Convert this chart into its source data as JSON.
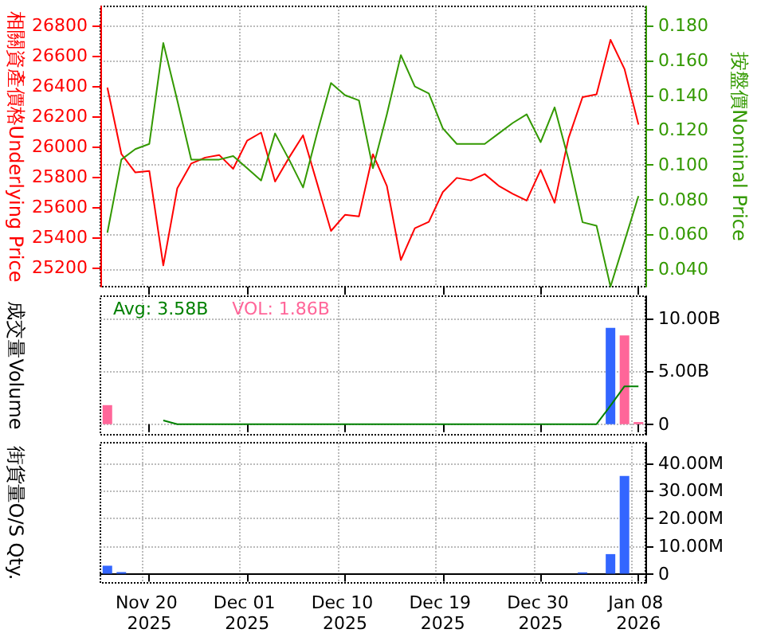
{
  "chart_data": [
    {
      "type": "line",
      "categories": [
        null,
        null,
        null,
        "Nov 20 2025",
        null,
        null,
        null,
        null,
        null,
        null,
        "Dec 01 2025",
        null,
        null,
        null,
        null,
        null,
        null,
        "Dec 10 2025",
        null,
        null,
        null,
        null,
        null,
        null,
        "Dec 19 2025",
        null,
        null,
        null,
        null,
        null,
        null,
        "Dec 30 2025",
        null,
        null,
        null,
        null,
        null,
        null,
        "Jan 08 2026"
      ],
      "tick_labels": "y",
      "ylabel": "相關資產價格Underlying Price",
      "y2label": "按盤價Nominal Price",
      "ylim": [
        25076,
        26926
      ],
      "yticks": [
        25200,
        25400,
        25600,
        25800,
        26000,
        26200,
        26400,
        26600,
        26800
      ],
      "y2lim": [
        0.03,
        0.191
      ],
      "y2ticks": [
        {
          "value": 0.04,
          "label": "0.040"
        },
        {
          "value": 0.06,
          "label": "0.060"
        },
        {
          "value": 0.08,
          "label": "0.080"
        },
        {
          "value": 0.1,
          "label": "0.100"
        },
        {
          "value": 0.12,
          "label": "0.120"
        },
        {
          "value": 0.14,
          "label": "0.140"
        },
        {
          "value": 0.16,
          "label": "0.160"
        },
        {
          "value": 0.18,
          "label": "0.180"
        }
      ],
      "grid": true,
      "marker": "none",
      "series": [
        {
          "color": "#ff0000",
          "values": [
            26390,
            25952,
            25830,
            25840,
            25216,
            25725,
            25889,
            25928,
            25945,
            25854,
            26040,
            26093,
            25770,
            25928,
            26075,
            25760,
            25444,
            25550,
            25540,
            25950,
            25740,
            25252,
            25462,
            25504,
            25700,
            25794,
            25777,
            25819,
            25742,
            25689,
            25644,
            25847,
            25630,
            26057,
            26327,
            26345,
            26705,
            26513,
            26145
          ]
        },
        {
          "color": "#339900",
          "axis": "y2",
          "values": [
            0.061,
            0.103,
            0.109,
            0.112,
            0.17,
            0.137,
            0.103,
            0.103,
            0.103,
            0.105,
            0.098,
            0.091,
            0.118,
            0.103,
            0.087,
            0.118,
            0.147,
            0.14,
            0.137,
            0.098,
            0.129,
            0.163,
            0.145,
            0.141,
            0.121,
            0.112,
            0.112,
            0.112,
            0.118,
            0.124,
            0.129,
            0.113,
            0.133,
            0.103,
            0.067,
            0.065,
            0.03,
            0.056,
            0.082
          ]
        }
      ]
    },
    {
      "type": "bar",
      "categories": [
        null,
        null,
        null,
        "Nov 20 2025",
        null,
        null,
        null,
        null,
        null,
        null,
        "Dec 01 2025",
        null,
        null,
        null,
        null,
        null,
        null,
        "Dec 10 2025",
        null,
        null,
        null,
        null,
        null,
        null,
        "Dec 19 2025",
        null,
        null,
        null,
        null,
        null,
        null,
        "Dec 30 2025",
        null,
        null,
        null,
        null,
        null,
        null,
        "Jan 08 2026"
      ],
      "tick_labels": "y",
      "ylabel": "成交量Volume",
      "ylim": [
        -1,
        12.1
      ],
      "yticks": [
        0,
        {
          "value": 5,
          "label": "5.00B"
        },
        {
          "value": 10,
          "label": "10.00B"
        }
      ],
      "grid": true,
      "marker": "none",
      "legend": "top left",
      "series": [
        {
          "color": "#3366ff",
          "values": [
            null,
            null,
            null,
            null,
            null,
            null,
            null,
            null,
            null,
            null,
            null,
            null,
            null,
            null,
            null,
            null,
            null,
            null,
            null,
            null,
            null,
            null,
            null,
            null,
            null,
            null,
            null,
            null,
            null,
            null,
            null,
            null,
            null,
            null,
            null,
            null,
            9.1,
            null,
            null
          ]
        },
        {
          "name": "Avg: 3.58B",
          "type": "line",
          "color": "#008000",
          "values": [
            null,
            null,
            null,
            null,
            0.36,
            0,
            0,
            0,
            0,
            0,
            0,
            0,
            0,
            0,
            0,
            0,
            0,
            0,
            0,
            0,
            0,
            0,
            0,
            0,
            0,
            0,
            0,
            0,
            0,
            0,
            0,
            0,
            0,
            0,
            0,
            0,
            1.75,
            3.58,
            3.58
          ]
        },
        {
          "name": "VOL: 1.86B",
          "color": "#ff6699",
          "values": [
            1.8,
            null,
            null,
            null,
            null,
            null,
            null,
            null,
            null,
            null,
            null,
            null,
            null,
            null,
            null,
            null,
            null,
            null,
            null,
            null,
            null,
            null,
            null,
            null,
            null,
            null,
            null,
            null,
            null,
            null,
            null,
            null,
            null,
            null,
            null,
            null,
            null,
            8.4,
            0.2
          ]
        }
      ]
    },
    {
      "type": "bar",
      "categories": [
        null,
        null,
        null,
        "Nov 20 2025",
        null,
        null,
        null,
        null,
        null,
        null,
        "Dec 01 2025",
        null,
        null,
        null,
        null,
        null,
        null,
        "Dec 10 2025",
        null,
        null,
        null,
        null,
        null,
        null,
        "Dec 19 2025",
        null,
        null,
        null,
        null,
        null,
        null,
        "Dec 30 2025",
        null,
        null,
        null,
        null,
        null,
        null,
        "Jan 08 2026"
      ],
      "ylabel": "街貨量O/S Qty.",
      "ylim": [
        -3.3,
        47.4
      ],
      "yticks": [
        0,
        {
          "value": 10,
          "label": "10.00M"
        },
        {
          "value": 20,
          "label": "20.00M"
        },
        {
          "value": 30,
          "label": "30.00M"
        },
        {
          "value": 40,
          "label": "40.00M"
        }
      ],
      "grid": true,
      "series": [
        {
          "color": "#3366ff",
          "values": [
            2.9,
            0.6,
            null,
            null,
            null,
            null,
            null,
            null,
            null,
            null,
            null,
            null,
            null,
            null,
            null,
            null,
            null,
            null,
            null,
            null,
            null,
            null,
            null,
            null,
            null,
            null,
            null,
            null,
            null,
            null,
            null,
            null,
            null,
            null,
            0.5,
            null,
            7.1,
            35.4,
            null
          ]
        }
      ]
    }
  ]
}
